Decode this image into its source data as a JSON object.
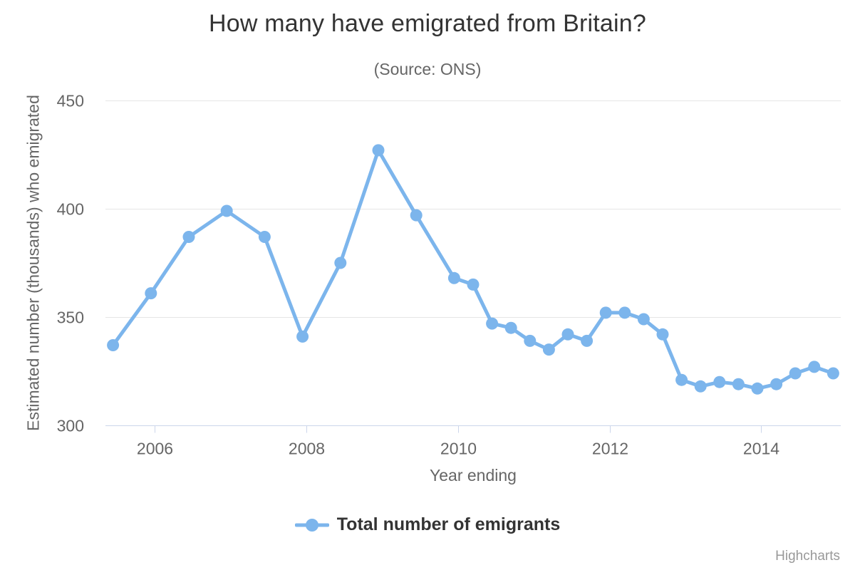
{
  "title": "How many have emigrated from Britain?",
  "subtitle": "(Source: ONS)",
  "x_axis_title": "Year ending",
  "y_axis_title": "Estimated number (thousands) who emigrated",
  "legend": {
    "label": "Total number of emigrants",
    "position": "bottom"
  },
  "credits": "Highcharts",
  "colors": {
    "series": "#7cb5ec",
    "title": "#333333",
    "muted_text": "#666666",
    "grid": "#e6e6e6",
    "axis_line": "#ccd6eb",
    "legend_text": "#333333",
    "credits_text": "#999999"
  },
  "chart_data": {
    "type": "line",
    "title": "How many have emigrated from Britain?",
    "subtitle": "(Source: ONS)",
    "xlabel": "Year ending",
    "ylabel": "Estimated number (thousands) who emigrated",
    "legend_position": "bottom",
    "grid": "horizontal-only",
    "marker": "circle",
    "xlim": [
      2005.35,
      2015.05
    ],
    "ylim": [
      300,
      450
    ],
    "x_ticks": [
      2006,
      2008,
      2010,
      2012,
      2014
    ],
    "x_tick_labels": [
      "2006",
      "2008",
      "2010",
      "2012",
      "2014"
    ],
    "y_ticks": [
      300,
      350,
      400,
      450
    ],
    "y_tick_labels": [
      "300",
      "350",
      "400",
      "450"
    ],
    "series": [
      {
        "name": "Total number of emigrants",
        "points": [
          {
            "x": 2005.45,
            "y": 337
          },
          {
            "x": 2005.95,
            "y": 361
          },
          {
            "x": 2006.45,
            "y": 387
          },
          {
            "x": 2006.95,
            "y": 399
          },
          {
            "x": 2007.45,
            "y": 387
          },
          {
            "x": 2007.95,
            "y": 341
          },
          {
            "x": 2008.45,
            "y": 375
          },
          {
            "x": 2008.95,
            "y": 427
          },
          {
            "x": 2009.45,
            "y": 397
          },
          {
            "x": 2009.95,
            "y": 368
          },
          {
            "x": 2010.2,
            "y": 365
          },
          {
            "x": 2010.45,
            "y": 347
          },
          {
            "x": 2010.7,
            "y": 345
          },
          {
            "x": 2010.95,
            "y": 339
          },
          {
            "x": 2011.2,
            "y": 335
          },
          {
            "x": 2011.45,
            "y": 342
          },
          {
            "x": 2011.7,
            "y": 339
          },
          {
            "x": 2011.95,
            "y": 352
          },
          {
            "x": 2012.2,
            "y": 352
          },
          {
            "x": 2012.45,
            "y": 349
          },
          {
            "x": 2012.7,
            "y": 342
          },
          {
            "x": 2012.95,
            "y": 321
          },
          {
            "x": 2013.2,
            "y": 318
          },
          {
            "x": 2013.45,
            "y": 320
          },
          {
            "x": 2013.7,
            "y": 319
          },
          {
            "x": 2013.95,
            "y": 317
          },
          {
            "x": 2014.2,
            "y": 319
          },
          {
            "x": 2014.45,
            "y": 324
          },
          {
            "x": 2014.7,
            "y": 327
          },
          {
            "x": 2014.95,
            "y": 324
          }
        ]
      }
    ]
  }
}
